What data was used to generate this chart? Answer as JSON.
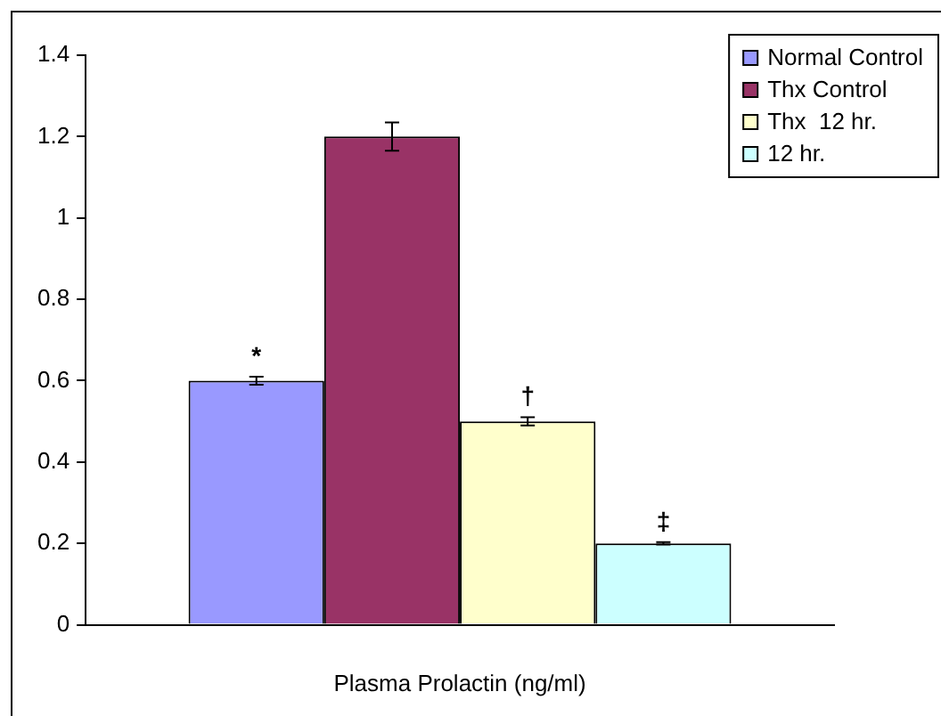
{
  "chart_data": {
    "type": "bar",
    "xlabel": "Plasma Prolactin (ng/ml)",
    "categories": [
      null
    ],
    "series": [
      {
        "name": "Normal Control",
        "color": "#9999ff",
        "values": [
          0.6
        ],
        "errors": [
          0.01
        ],
        "value_labels": [
          "*"
        ]
      },
      {
        "name": "Thx Control",
        "color": "#993366",
        "values": [
          1.2
        ],
        "errors": [
          0.035
        ]
      },
      {
        "name": "Thx  12 hr.",
        "color": "#ffffcc",
        "values": [
          0.5
        ],
        "errors": [
          0.01
        ],
        "value_labels": [
          "†"
        ]
      },
      {
        "name": "12 hr.",
        "color": "#ccffff",
        "values": [
          0.2
        ],
        "errors": [
          0.003
        ],
        "value_labels": [
          "‡"
        ]
      }
    ],
    "ylim": [
      0,
      1.4
    ],
    "yticks": [
      0,
      0.2,
      0.4,
      0.6,
      0.8,
      1,
      1.2,
      1.4
    ],
    "grid": false,
    "legend": "top right"
  }
}
